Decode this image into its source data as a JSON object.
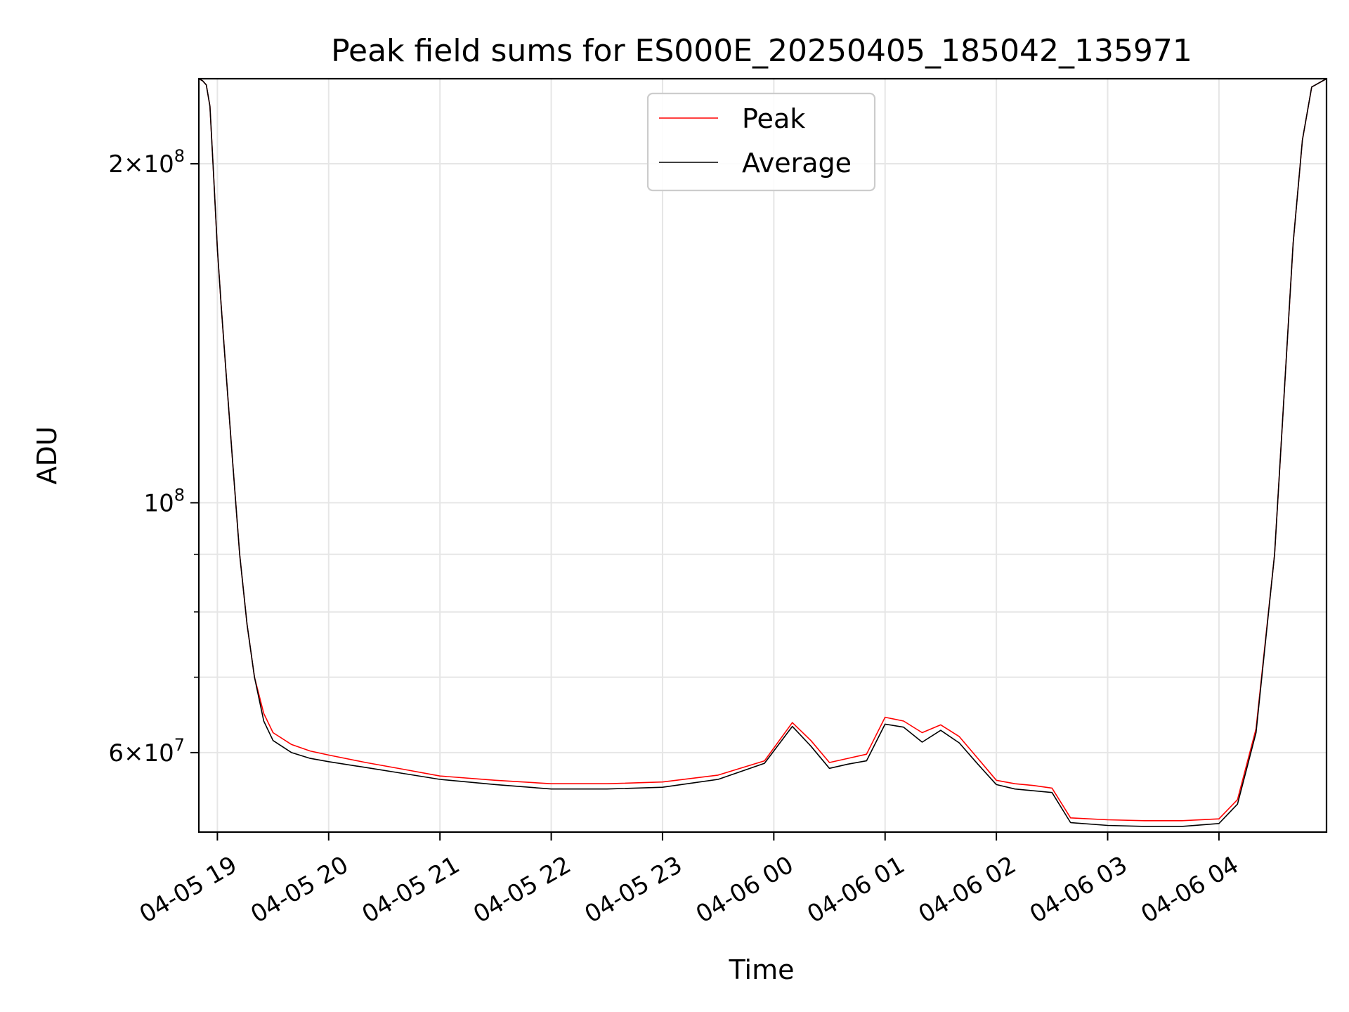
{
  "chart_data": {
    "type": "line",
    "title": "Peak field sums for ES000E_20250405_185042_135971",
    "xlabel": "Time",
    "ylabel": "ADU",
    "yscale": "log",
    "ylim": [
      51000000,
      238000000
    ],
    "xlim": [
      "04-05 18:50",
      "04-06 04:58"
    ],
    "grid": true,
    "legend_position": "upper center",
    "x_ticks": [
      "04-05 19",
      "04-05 20",
      "04-05 21",
      "04-05 22",
      "04-05 23",
      "04-06 00",
      "04-06 01",
      "04-06 02",
      "04-06 03",
      "04-06 04"
    ],
    "x_tick_times": [
      "04-05 19:00",
      "04-05 20:00",
      "04-05 21:00",
      "04-05 22:00",
      "04-05 23:00",
      "04-06 00:00",
      "04-06 01:00",
      "04-06 02:00",
      "04-06 03:00",
      "04-06 04:00"
    ],
    "y_ticks": [
      {
        "value": 200000000,
        "mant": "2",
        "exp": "8"
      },
      {
        "value": 100000000,
        "mant": "",
        "exp": "8"
      },
      {
        "value": 60000000,
        "mant": "6",
        "exp": "7"
      }
    ],
    "y_minor_ticks": [
      70000000,
      80000000,
      90000000
    ],
    "series": [
      {
        "name": "Peak",
        "color": "#ff0000",
        "x": [
          "04-05 18:50",
          "04-05 18:52",
          "04-05 18:54",
          "04-05 18:56",
          "04-05 18:58",
          "04-05 19:00",
          "04-05 19:02",
          "04-05 19:04",
          "04-05 19:08",
          "04-05 19:12",
          "04-05 19:16",
          "04-05 19:20",
          "04-05 19:25",
          "04-05 19:30",
          "04-05 19:40",
          "04-05 19:50",
          "04-05 20:00",
          "04-05 20:20",
          "04-05 20:40",
          "04-05 21:00",
          "04-05 21:30",
          "04-05 22:00",
          "04-05 22:30",
          "04-05 23:00",
          "04-05 23:30",
          "04-05 23:55",
          "04-06 00:10",
          "04-06 00:20",
          "04-06 00:30",
          "04-06 00:40",
          "04-06 00:50",
          "04-06 01:00",
          "04-06 01:10",
          "04-06 01:20",
          "04-06 01:30",
          "04-06 01:40",
          "04-06 01:50",
          "04-06 02:00",
          "04-06 02:10",
          "04-06 02:20",
          "04-06 02:30",
          "04-06 02:40",
          "04-06 03:00",
          "04-06 03:20",
          "04-06 03:40",
          "04-06 04:00",
          "04-06 04:10",
          "04-06 04:20",
          "04-06 04:30",
          "04-06 04:40",
          "04-06 04:45",
          "04-06 04:50",
          "04-06 04:58"
        ],
        "y": [
          238000000,
          237000000,
          235000000,
          225000000,
          195000000,
          168000000,
          150000000,
          135000000,
          110000000,
          90000000,
          78000000,
          70000000,
          65000000,
          62500000,
          61000000,
          60200000,
          59700000,
          58800000,
          58000000,
          57200000,
          56700000,
          56300000,
          56300000,
          56500000,
          57300000,
          59000000,
          63800000,
          61500000,
          58800000,
          59300000,
          59800000,
          64500000,
          64000000,
          62500000,
          63500000,
          62000000,
          59300000,
          56700000,
          56300000,
          56100000,
          55800000,
          52500000,
          52300000,
          52200000,
          52200000,
          52400000,
          54500000,
          63000000,
          90000000,
          170000000,
          210000000,
          234000000,
          238000000
        ]
      },
      {
        "name": "Average",
        "color": "#000000",
        "x": [
          "04-05 18:50",
          "04-05 18:52",
          "04-05 18:54",
          "04-05 18:56",
          "04-05 18:58",
          "04-05 19:00",
          "04-05 19:02",
          "04-05 19:04",
          "04-05 19:08",
          "04-05 19:12",
          "04-05 19:16",
          "04-05 19:20",
          "04-05 19:25",
          "04-05 19:30",
          "04-05 19:40",
          "04-05 19:50",
          "04-05 20:00",
          "04-05 20:20",
          "04-05 20:40",
          "04-05 21:00",
          "04-05 21:30",
          "04-05 22:00",
          "04-05 22:30",
          "04-05 23:00",
          "04-05 23:30",
          "04-05 23:55",
          "04-06 00:10",
          "04-06 00:20",
          "04-06 00:30",
          "04-06 00:40",
          "04-06 00:50",
          "04-06 01:00",
          "04-06 01:10",
          "04-06 01:20",
          "04-06 01:30",
          "04-06 01:40",
          "04-06 01:50",
          "04-06 02:00",
          "04-06 02:10",
          "04-06 02:20",
          "04-06 02:30",
          "04-06 02:40",
          "04-06 03:00",
          "04-06 03:20",
          "04-06 03:40",
          "04-06 04:00",
          "04-06 04:10",
          "04-06 04:20",
          "04-06 04:30",
          "04-06 04:40",
          "04-06 04:45",
          "04-06 04:50",
          "04-06 04:58"
        ],
        "y": [
          238000000,
          237000000,
          235000000,
          225000000,
          195000000,
          168000000,
          150000000,
          135000000,
          110000000,
          90000000,
          78000000,
          70000000,
          64000000,
          61500000,
          60000000,
          59300000,
          58900000,
          58200000,
          57500000,
          56800000,
          56200000,
          55700000,
          55700000,
          55900000,
          56800000,
          58700000,
          63300000,
          60800000,
          58100000,
          58600000,
          59000000,
          63600000,
          63200000,
          61300000,
          62800000,
          61200000,
          58600000,
          56200000,
          55700000,
          55500000,
          55300000,
          52000000,
          51700000,
          51600000,
          51600000,
          51900000,
          54000000,
          62500000,
          90000000,
          170000000,
          210000000,
          234000000,
          238000000
        ]
      }
    ]
  }
}
